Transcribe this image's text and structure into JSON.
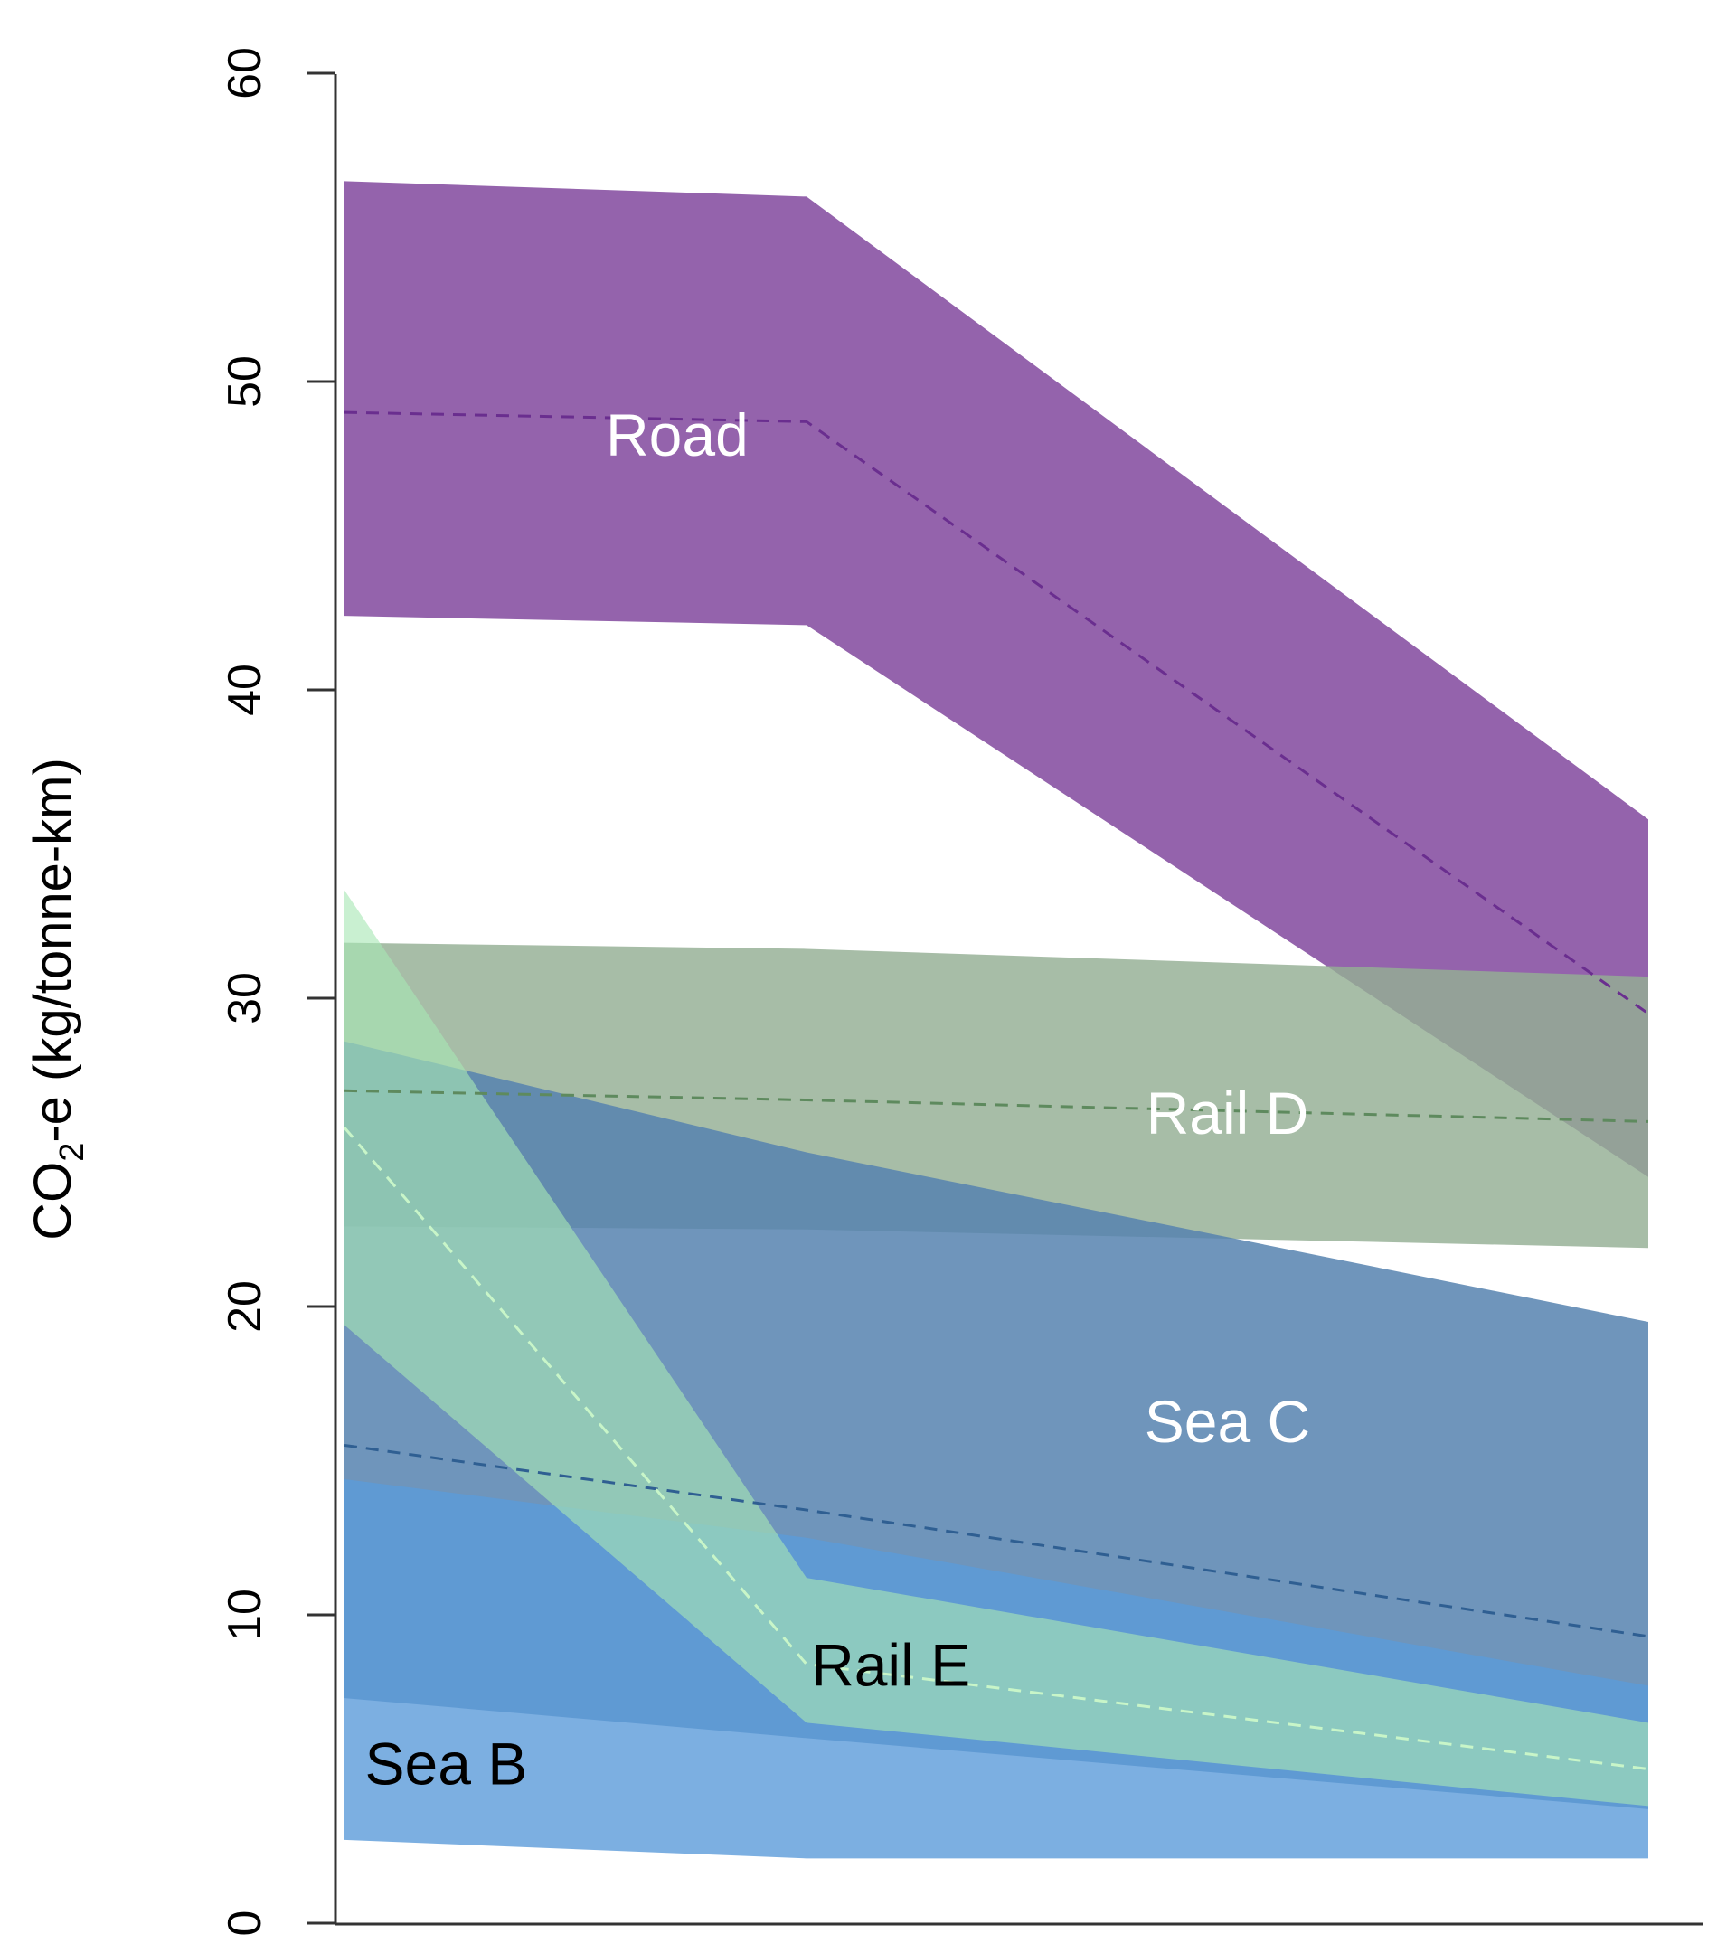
{
  "chart_data": {
    "type": "area",
    "title": "",
    "xlabel": "",
    "ylabel": "CO2-e (kg/tonne-km)",
    "ylabel_parts": {
      "main": "CO",
      "sub": "2",
      "rest": "-e (kg/tonne-km)"
    },
    "ylim": [
      0,
      60
    ],
    "yticks": [
      0,
      10,
      20,
      30,
      40,
      50,
      60
    ],
    "x": [
      0,
      1,
      2
    ],
    "grid": false,
    "legend": "none (direct labels)",
    "series": [
      {
        "name": "Road",
        "label_color": "#ffffff",
        "fill": "#9463ac",
        "line": "#6a2e8f",
        "upper": [
          56.5,
          56.0,
          35.8
        ],
        "mean": [
          49.0,
          48.7,
          29.5
        ],
        "lower": [
          42.4,
          42.1,
          24.2
        ],
        "label_pos": [
          0.72,
          47.6
        ]
      },
      {
        "name": "Rail D",
        "label_color": "#ffffff",
        "fill": "#94ae94",
        "line": "#5e8a5e",
        "upper": [
          31.8,
          31.6,
          30.7
        ],
        "mean": [
          27.0,
          26.7,
          26.0
        ],
        "lower": [
          22.6,
          22.5,
          21.9
        ],
        "label_pos": [
          1.5,
          25.6
        ]
      },
      {
        "name": "Sea C",
        "label_color": "#ffffff",
        "fill": "#5683af",
        "line": "#2f5f92",
        "upper": [
          28.6,
          25.0,
          19.5
        ],
        "mean": [
          15.5,
          13.4,
          9.3
        ],
        "lower": [
          7.3,
          6.0,
          3.7
        ],
        "label_pos": [
          1.5,
          15.6
        ]
      },
      {
        "name": "Rail E",
        "label_color": "#000000",
        "fill": "#a8e6b4",
        "line": "#c8f5c8",
        "upper": [
          33.5,
          11.2,
          6.5
        ],
        "mean": [
          25.8,
          8.4,
          5.0
        ],
        "lower": [
          19.4,
          6.5,
          3.8
        ],
        "label_pos": [
          1.1,
          7.7
        ]
      },
      {
        "name": "Sea B",
        "label_color": "#000000",
        "fill": "#5b9bd9",
        "line": "#1f5fa0",
        "upper": [
          14.4,
          12.5,
          7.7
        ],
        "mean": null,
        "lower": [
          2.7,
          2.1,
          2.1
        ],
        "label_pos": [
          0.22,
          4.5
        ]
      }
    ]
  },
  "axes": {
    "y_tick_labels": [
      "0",
      "10",
      "20",
      "30",
      "40",
      "50",
      "60"
    ]
  }
}
